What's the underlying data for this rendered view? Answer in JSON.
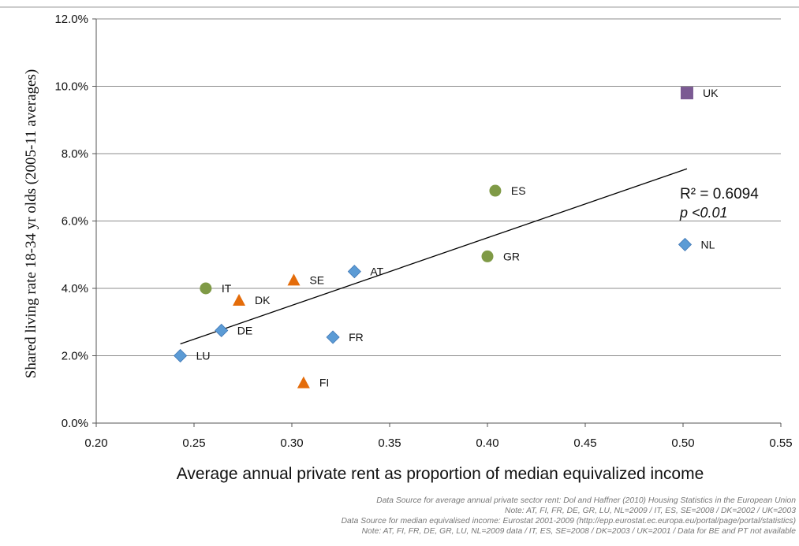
{
  "chart_data": {
    "type": "scatter",
    "xlabel": "Average annual private rent as proportion of median equivalized income",
    "ylabel": "Shared living rate 18-34 yr olds  (2005-11 averages)",
    "xlim": [
      0.2,
      0.55
    ],
    "ylim": [
      0.0,
      12.0
    ],
    "x_ticks": [
      "0.20",
      "0.25",
      "0.30",
      "0.35",
      "0.40",
      "0.45",
      "0.50",
      "0.55"
    ],
    "y_ticks": [
      "0.0%",
      "2.0%",
      "4.0%",
      "6.0%",
      "8.0%",
      "10.0%",
      "12.0%"
    ],
    "grid": "horizontal",
    "points": [
      {
        "label": "UK",
        "x": 0.502,
        "y": 9.8,
        "marker": "square",
        "color": "#7b5a93"
      },
      {
        "label": "ES",
        "x": 0.404,
        "y": 6.9,
        "marker": "circle",
        "color": "#7f9a46"
      },
      {
        "label": "NL",
        "x": 0.501,
        "y": 5.3,
        "marker": "diamond",
        "color": "#5b9bd5"
      },
      {
        "label": "GR",
        "x": 0.4,
        "y": 4.95,
        "marker": "circle",
        "color": "#7f9a46"
      },
      {
        "label": "AT",
        "x": 0.332,
        "y": 4.5,
        "marker": "diamond",
        "color": "#5b9bd5"
      },
      {
        "label": "SE",
        "x": 0.301,
        "y": 4.25,
        "marker": "triangle",
        "color": "#e46c0a"
      },
      {
        "label": "IT",
        "x": 0.256,
        "y": 4.0,
        "marker": "circle",
        "color": "#7f9a46"
      },
      {
        "label": "DK",
        "x": 0.273,
        "y": 3.65,
        "marker": "triangle",
        "color": "#e46c0a"
      },
      {
        "label": "DE",
        "x": 0.264,
        "y": 2.75,
        "marker": "diamond",
        "color": "#5b9bd5"
      },
      {
        "label": "FR",
        "x": 0.321,
        "y": 2.55,
        "marker": "diamond",
        "color": "#5b9bd5"
      },
      {
        "label": "LU",
        "x": 0.243,
        "y": 2.0,
        "marker": "diamond",
        "color": "#5b9bd5"
      },
      {
        "label": "FI",
        "x": 0.306,
        "y": 1.2,
        "marker": "triangle",
        "color": "#e46c0a"
      }
    ],
    "trendline": {
      "x": [
        0.243,
        0.502
      ],
      "y": [
        2.35,
        7.55
      ]
    },
    "annotations": {
      "r2": "R² = 0.6094",
      "p": "p <0.01"
    }
  },
  "notes": [
    "Data Source for average annual private sector rent: Dol and Haffner (2010) Housing Statistics in the European Union",
    "Note: AT, FI, FR, DE, GR, LU, NL=2009 / IT, ES, SE=2008  / DK=2002  /  UK=2003",
    "Data Source for median equivalised income: Eurostat 2001-2009 (http://epp.eurostat.ec.europa.eu/portal/page/portal/statistics)",
    "Note: AT, FI, FR, DE, GR, LU, NL=2009 data / IT, ES, SE=2008  / DK=2003 / UK=2001 / Data for BE and PT not available"
  ]
}
